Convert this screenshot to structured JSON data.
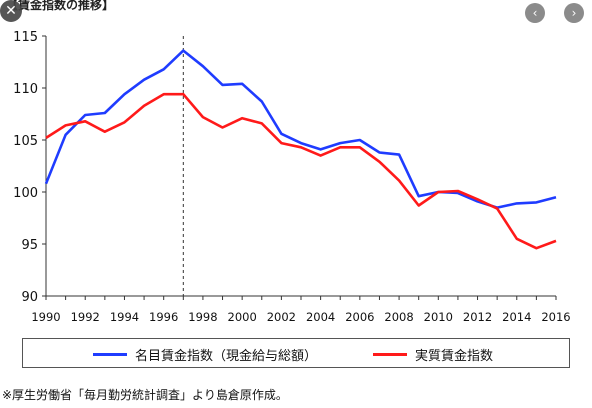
{
  "title": "【賃金指数の推移】",
  "footer": "※厚生労働省「毎月勤労統計調査」より島倉原作成。",
  "buttons": {
    "close": "✕",
    "prev": "‹",
    "next": "›"
  },
  "chart_data": {
    "type": "line",
    "x": [
      1990,
      1991,
      1992,
      1993,
      1994,
      1995,
      1996,
      1997,
      1998,
      1999,
      2000,
      2001,
      2002,
      2003,
      2004,
      2005,
      2006,
      2007,
      2008,
      2009,
      2010,
      2011,
      2012,
      2013,
      2014,
      2015,
      2016
    ],
    "xticks": [
      "1990",
      "1992",
      "1994",
      "1996",
      "1998",
      "2000",
      "2002",
      "2004",
      "2006",
      "2008",
      "2010",
      "2012",
      "2014",
      "2016"
    ],
    "yticks": [
      "90",
      "95",
      "100",
      "105",
      "110",
      "115"
    ],
    "ylim": [
      90,
      115
    ],
    "xlim": [
      1990,
      2016
    ],
    "vline_x": 1997,
    "series": [
      {
        "name": "名目賃金指数（現金給与総額）",
        "color": "#1f3cff",
        "values": [
          100.8,
          105.5,
          107.4,
          107.6,
          109.4,
          110.8,
          111.8,
          113.6,
          112.1,
          110.3,
          110.4,
          108.7,
          105.6,
          104.7,
          104.1,
          104.7,
          105.0,
          103.8,
          103.6,
          99.6,
          100.0,
          99.9,
          99.1,
          98.5,
          98.9,
          99.0,
          99.5
        ]
      },
      {
        "name": "実質賃金指数",
        "color": "#ff1a1a",
        "values": [
          105.2,
          106.4,
          106.8,
          105.8,
          106.7,
          108.3,
          109.4,
          109.4,
          107.2,
          106.2,
          107.1,
          106.6,
          104.7,
          104.3,
          103.5,
          104.3,
          104.3,
          102.9,
          101.1,
          98.7,
          100.0,
          100.1,
          99.3,
          98.4,
          95.5,
          94.6,
          95.3
        ]
      }
    ]
  }
}
